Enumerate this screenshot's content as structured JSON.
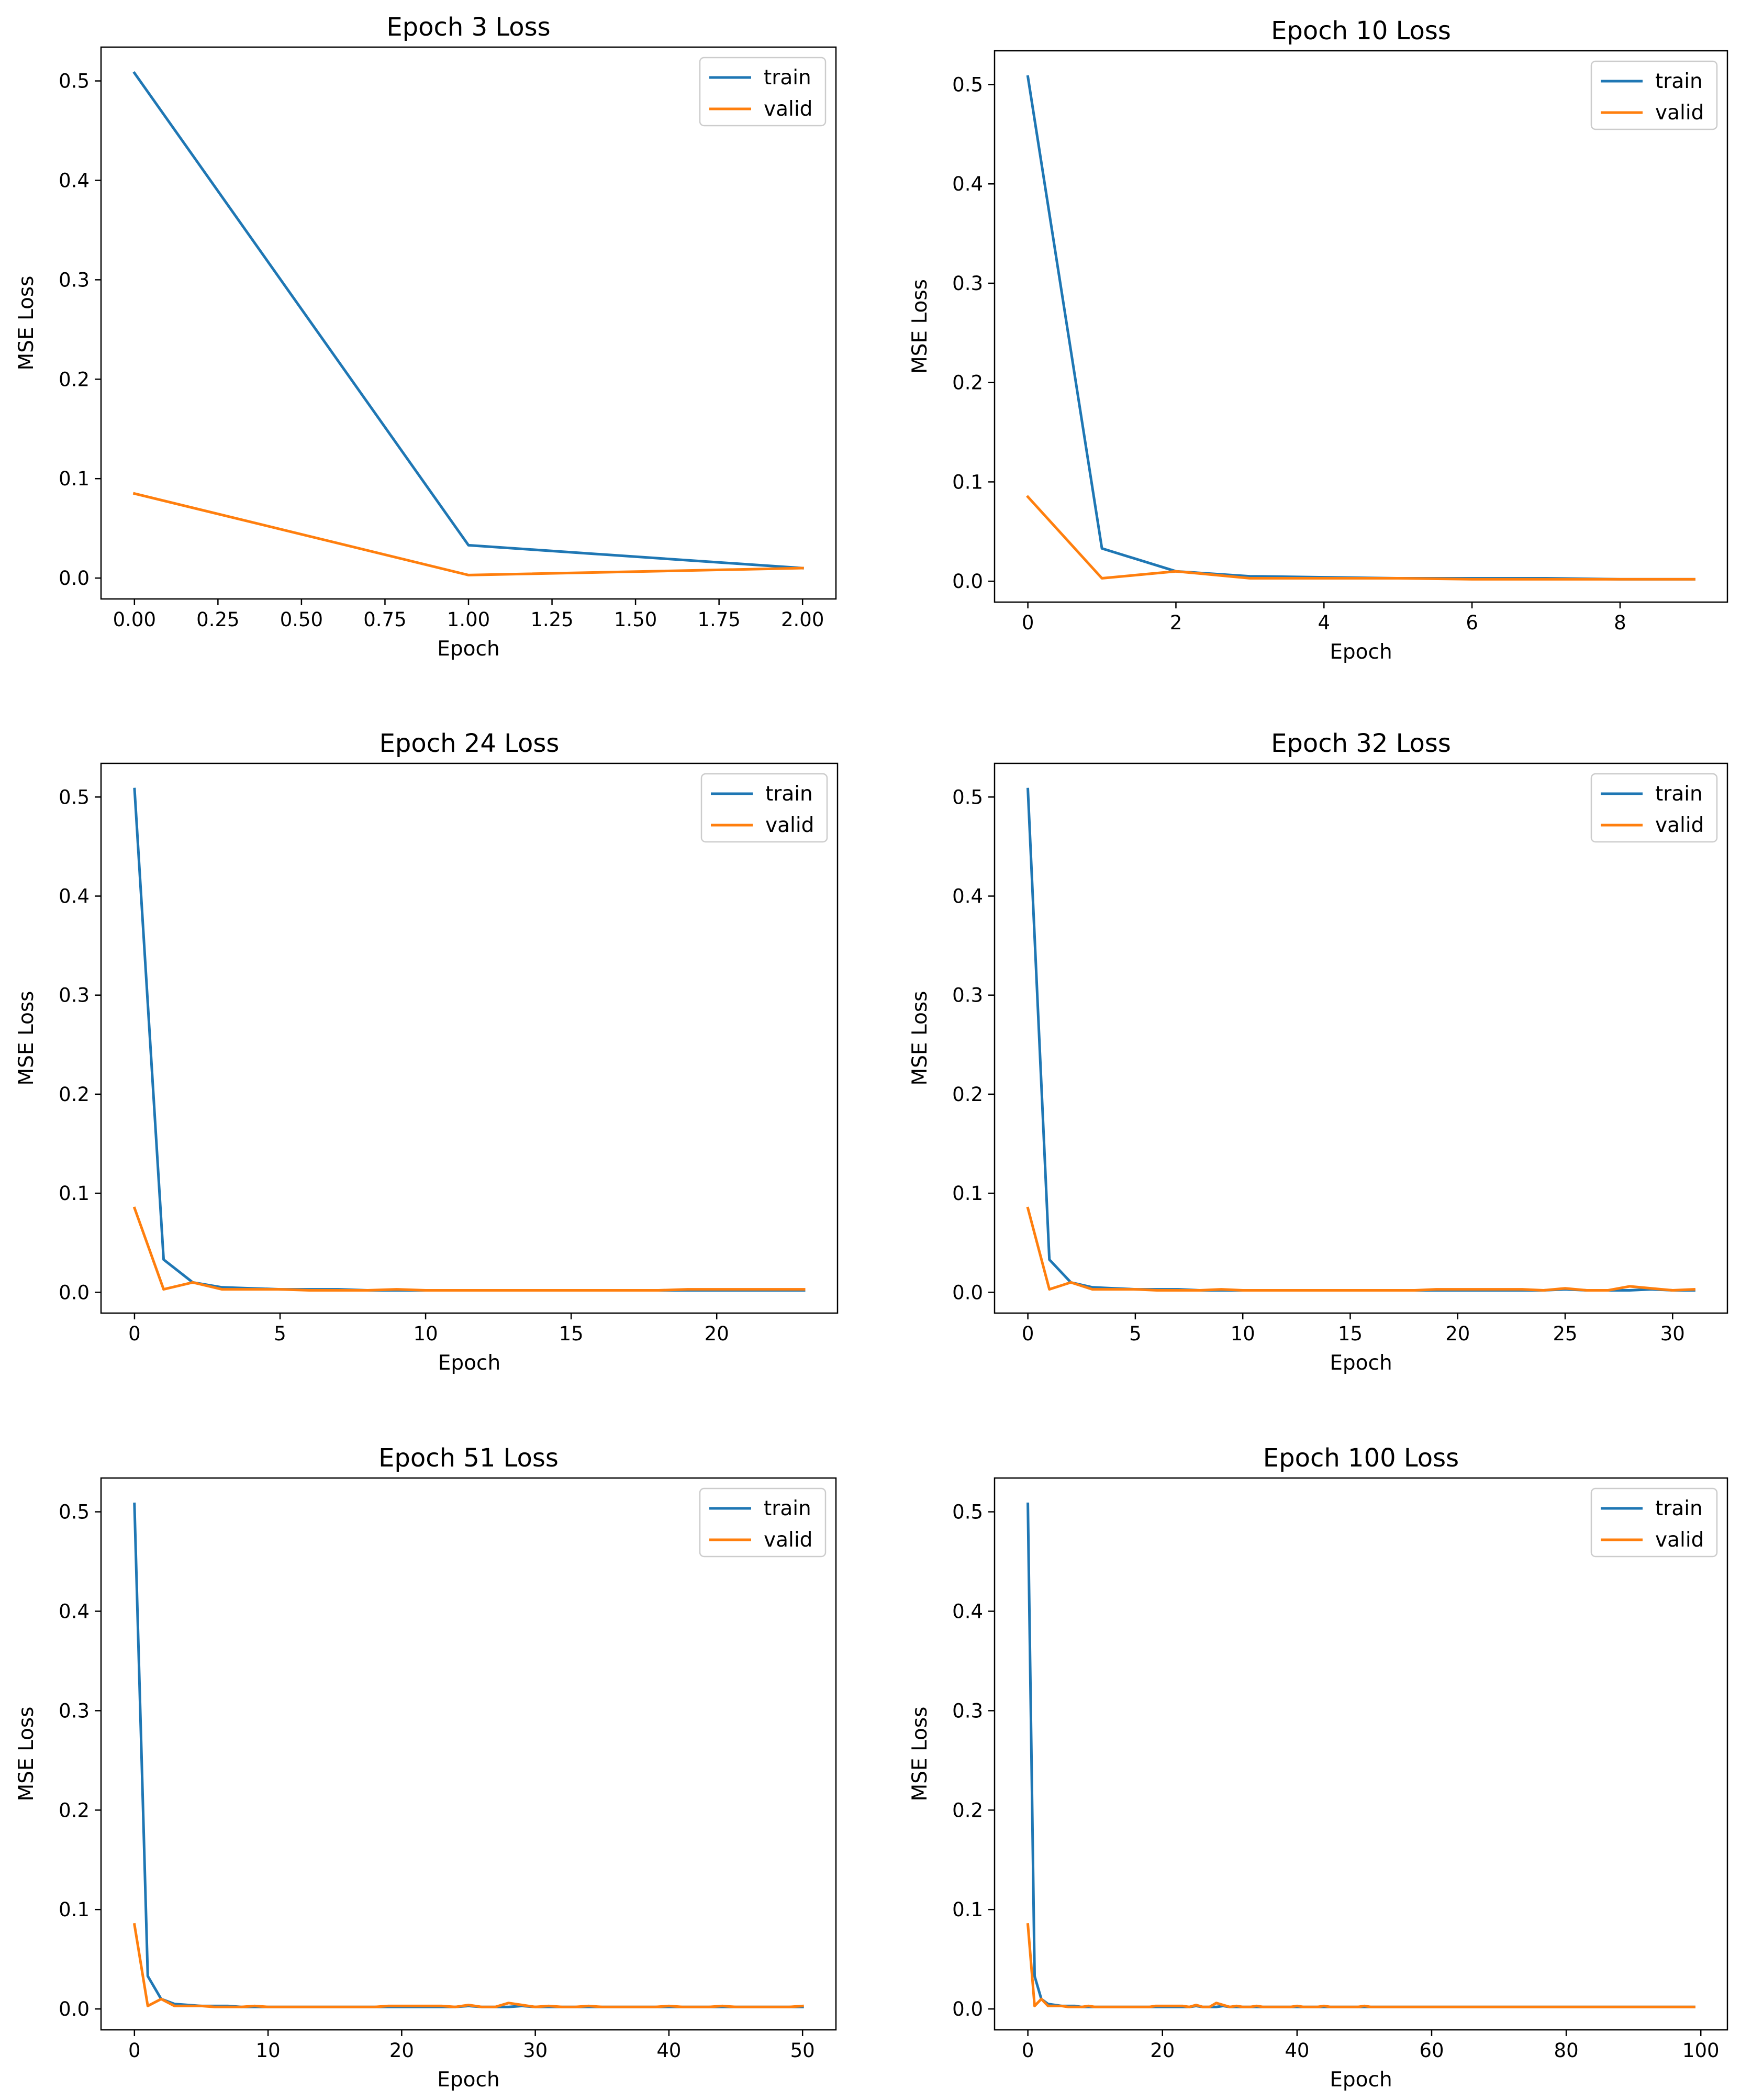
{
  "chart_data": [
    {
      "type": "line",
      "title": "Epoch 3 Loss",
      "xlabel": "Epoch",
      "ylabel": "MSE Loss",
      "xlim": [
        -0.1,
        2.1
      ],
      "ylim": [
        -0.021,
        0.534
      ],
      "xticks": [
        0,
        0.25,
        0.5,
        0.75,
        1,
        1.25,
        1.5,
        1.75,
        2
      ],
      "xtick_labels": [
        "0.00",
        "0.25",
        "0.50",
        "0.75",
        "1.00",
        "1.25",
        "1.50",
        "1.75",
        "2.00"
      ],
      "yticks": [
        0,
        0.1,
        0.2,
        0.3,
        0.4,
        0.5
      ],
      "ytick_labels": [
        "0.0",
        "0.1",
        "0.2",
        "0.3",
        "0.4",
        "0.5"
      ],
      "legend": "top-right",
      "grid": false,
      "x": [
        0,
        1,
        2
      ],
      "series": [
        {
          "name": "train",
          "color": "#1f77b4",
          "values": [
            0.508,
            0.033,
            0.01
          ]
        },
        {
          "name": "valid",
          "color": "#ff7f0e",
          "values": [
            0.085,
            0.003,
            0.01
          ]
        }
      ]
    },
    {
      "type": "line",
      "title": "Epoch 10 Loss",
      "xlabel": "Epoch",
      "ylabel": "MSE Loss",
      "xlim": [
        -0.45,
        9.45
      ],
      "ylim": [
        -0.021,
        0.534
      ],
      "xticks": [
        0,
        2,
        4,
        6,
        8
      ],
      "xtick_labels": [
        "0",
        "2",
        "4",
        "6",
        "8"
      ],
      "yticks": [
        0,
        0.1,
        0.2,
        0.3,
        0.4,
        0.5
      ],
      "ytick_labels": [
        "0.0",
        "0.1",
        "0.2",
        "0.3",
        "0.4",
        "0.5"
      ],
      "legend": "top-right",
      "grid": false,
      "x": [
        0,
        1,
        2,
        3,
        4,
        5,
        6,
        7,
        8,
        9
      ],
      "series": [
        {
          "name": "train",
          "color": "#1f77b4",
          "values": [
            0.508,
            0.033,
            0.01,
            0.005,
            0.004,
            0.003,
            0.003,
            0.003,
            0.002,
            0.002
          ]
        },
        {
          "name": "valid",
          "color": "#ff7f0e",
          "values": [
            0.085,
            0.003,
            0.01,
            0.003,
            0.003,
            0.003,
            0.002,
            0.002,
            0.002,
            0.002
          ]
        }
      ]
    },
    {
      "type": "line",
      "title": "Epoch 24 Loss",
      "xlabel": "Epoch",
      "ylabel": "MSE Loss",
      "xlim": [
        -1.15,
        24.15
      ],
      "ylim": [
        -0.021,
        0.534
      ],
      "xticks": [
        0,
        5,
        10,
        15,
        20
      ],
      "xtick_labels": [
        "0",
        "5",
        "10",
        "15",
        "20"
      ],
      "yticks": [
        0,
        0.1,
        0.2,
        0.3,
        0.4,
        0.5
      ],
      "ytick_labels": [
        "0.0",
        "0.1",
        "0.2",
        "0.3",
        "0.4",
        "0.5"
      ],
      "legend": "top-right",
      "grid": false,
      "x": [
        0,
        1,
        2,
        3,
        4,
        5,
        6,
        7,
        8,
        9,
        10,
        11,
        12,
        13,
        14,
        15,
        16,
        17,
        18,
        19,
        20,
        21,
        22,
        23
      ],
      "series": [
        {
          "name": "train",
          "color": "#1f77b4",
          "values": [
            0.508,
            0.033,
            0.01,
            0.005,
            0.004,
            0.003,
            0.003,
            0.003,
            0.002,
            0.002,
            0.002,
            0.002,
            0.002,
            0.002,
            0.002,
            0.002,
            0.002,
            0.002,
            0.002,
            0.002,
            0.002,
            0.002,
            0.002,
            0.002
          ]
        },
        {
          "name": "valid",
          "color": "#ff7f0e",
          "values": [
            0.085,
            0.003,
            0.01,
            0.003,
            0.003,
            0.003,
            0.002,
            0.002,
            0.002,
            0.003,
            0.002,
            0.002,
            0.002,
            0.002,
            0.002,
            0.002,
            0.002,
            0.002,
            0.002,
            0.003,
            0.003,
            0.003,
            0.003,
            0.003
          ]
        }
      ]
    },
    {
      "type": "line",
      "title": "Epoch 32 Loss",
      "xlabel": "Epoch",
      "ylabel": "MSE Loss",
      "xlim": [
        -1.55,
        32.55
      ],
      "ylim": [
        -0.021,
        0.534
      ],
      "xticks": [
        0,
        5,
        10,
        15,
        20,
        25,
        30
      ],
      "xtick_labels": [
        "0",
        "5",
        "10",
        "15",
        "20",
        "25",
        "30"
      ],
      "yticks": [
        0,
        0.1,
        0.2,
        0.3,
        0.4,
        0.5
      ],
      "ytick_labels": [
        "0.0",
        "0.1",
        "0.2",
        "0.3",
        "0.4",
        "0.5"
      ],
      "legend": "top-right",
      "grid": false,
      "x": [
        0,
        1,
        2,
        3,
        4,
        5,
        6,
        7,
        8,
        9,
        10,
        11,
        12,
        13,
        14,
        15,
        16,
        17,
        18,
        19,
        20,
        21,
        22,
        23,
        24,
        25,
        26,
        27,
        28,
        29,
        30,
        31
      ],
      "series": [
        {
          "name": "train",
          "color": "#1f77b4",
          "values": [
            0.508,
            0.033,
            0.01,
            0.005,
            0.004,
            0.003,
            0.003,
            0.003,
            0.002,
            0.002,
            0.002,
            0.002,
            0.002,
            0.002,
            0.002,
            0.002,
            0.002,
            0.002,
            0.002,
            0.002,
            0.002,
            0.002,
            0.002,
            0.002,
            0.002,
            0.003,
            0.002,
            0.002,
            0.002,
            0.003,
            0.002,
            0.002
          ]
        },
        {
          "name": "valid",
          "color": "#ff7f0e",
          "values": [
            0.085,
            0.003,
            0.01,
            0.003,
            0.003,
            0.003,
            0.002,
            0.002,
            0.002,
            0.003,
            0.002,
            0.002,
            0.002,
            0.002,
            0.002,
            0.002,
            0.002,
            0.002,
            0.002,
            0.003,
            0.003,
            0.003,
            0.003,
            0.003,
            0.002,
            0.004,
            0.002,
            0.002,
            0.006,
            0.004,
            0.002,
            0.003
          ]
        }
      ]
    },
    {
      "type": "line",
      "title": "Epoch 51 Loss",
      "xlabel": "Epoch",
      "ylabel": "MSE Loss",
      "xlim": [
        -2.5,
        52.5
      ],
      "ylim": [
        -0.021,
        0.534
      ],
      "xticks": [
        0,
        10,
        20,
        30,
        40,
        50
      ],
      "xtick_labels": [
        "0",
        "10",
        "20",
        "30",
        "40",
        "50"
      ],
      "yticks": [
        0,
        0.1,
        0.2,
        0.3,
        0.4,
        0.5
      ],
      "ytick_labels": [
        "0.0",
        "0.1",
        "0.2",
        "0.3",
        "0.4",
        "0.5"
      ],
      "legend": "top-right",
      "grid": false,
      "x": [
        0,
        1,
        2,
        3,
        4,
        5,
        6,
        7,
        8,
        9,
        10,
        11,
        12,
        13,
        14,
        15,
        16,
        17,
        18,
        19,
        20,
        21,
        22,
        23,
        24,
        25,
        26,
        27,
        28,
        29,
        30,
        31,
        32,
        33,
        34,
        35,
        36,
        37,
        38,
        39,
        40,
        41,
        42,
        43,
        44,
        45,
        46,
        47,
        48,
        49,
        50
      ],
      "series": [
        {
          "name": "train",
          "color": "#1f77b4",
          "values": [
            0.508,
            0.033,
            0.01,
            0.005,
            0.004,
            0.003,
            0.003,
            0.003,
            0.002,
            0.002,
            0.002,
            0.002,
            0.002,
            0.002,
            0.002,
            0.002,
            0.002,
            0.002,
            0.002,
            0.002,
            0.002,
            0.002,
            0.002,
            0.002,
            0.002,
            0.003,
            0.002,
            0.002,
            0.002,
            0.003,
            0.002,
            0.002,
            0.002,
            0.002,
            0.002,
            0.002,
            0.002,
            0.002,
            0.002,
            0.002,
            0.002,
            0.002,
            0.002,
            0.002,
            0.002,
            0.002,
            0.002,
            0.002,
            0.002,
            0.002,
            0.002
          ]
        },
        {
          "name": "valid",
          "color": "#ff7f0e",
          "values": [
            0.085,
            0.003,
            0.01,
            0.003,
            0.003,
            0.003,
            0.002,
            0.002,
            0.002,
            0.003,
            0.002,
            0.002,
            0.002,
            0.002,
            0.002,
            0.002,
            0.002,
            0.002,
            0.002,
            0.003,
            0.003,
            0.003,
            0.003,
            0.003,
            0.002,
            0.004,
            0.002,
            0.002,
            0.006,
            0.004,
            0.002,
            0.003,
            0.002,
            0.002,
            0.003,
            0.002,
            0.002,
            0.002,
            0.002,
            0.002,
            0.003,
            0.002,
            0.002,
            0.002,
            0.003,
            0.002,
            0.002,
            0.002,
            0.002,
            0.002,
            0.003
          ]
        }
      ]
    },
    {
      "type": "line",
      "title": "Epoch 100 Loss",
      "xlabel": "Epoch",
      "ylabel": "MSE Loss",
      "xlim": [
        -4.95,
        103.95
      ],
      "ylim": [
        -0.021,
        0.534
      ],
      "xticks": [
        0,
        20,
        40,
        60,
        80,
        100
      ],
      "xtick_labels": [
        "0",
        "20",
        "40",
        "60",
        "80",
        "100"
      ],
      "yticks": [
        0,
        0.1,
        0.2,
        0.3,
        0.4,
        0.5
      ],
      "ytick_labels": [
        "0.0",
        "0.1",
        "0.2",
        "0.3",
        "0.4",
        "0.5"
      ],
      "legend": "top-right",
      "grid": false,
      "x": [
        0,
        1,
        2,
        3,
        4,
        5,
        6,
        7,
        8,
        9,
        10,
        11,
        12,
        13,
        14,
        15,
        16,
        17,
        18,
        19,
        20,
        21,
        22,
        23,
        24,
        25,
        26,
        27,
        28,
        29,
        30,
        31,
        32,
        33,
        34,
        35,
        36,
        37,
        38,
        39,
        40,
        41,
        42,
        43,
        44,
        45,
        46,
        47,
        48,
        49,
        50,
        51,
        52,
        53,
        54,
        55,
        56,
        57,
        58,
        59,
        60,
        61,
        62,
        63,
        64,
        65,
        66,
        67,
        68,
        69,
        70,
        71,
        72,
        73,
        74,
        75,
        76,
        77,
        78,
        79,
        80,
        81,
        82,
        83,
        84,
        85,
        86,
        87,
        88,
        89,
        90,
        91,
        92,
        93,
        94,
        95,
        96,
        97,
        98,
        99
      ],
      "series": [
        {
          "name": "train",
          "color": "#1f77b4",
          "values": [
            0.508,
            0.033,
            0.01,
            0.005,
            0.004,
            0.003,
            0.003,
            0.003,
            0.002,
            0.002,
            0.002,
            0.002,
            0.002,
            0.002,
            0.002,
            0.002,
            0.002,
            0.002,
            0.002,
            0.002,
            0.002,
            0.002,
            0.002,
            0.002,
            0.002,
            0.003,
            0.002,
            0.002,
            0.002,
            0.003,
            0.002,
            0.002,
            0.002,
            0.002,
            0.002,
            0.002,
            0.002,
            0.002,
            0.002,
            0.002,
            0.002,
            0.002,
            0.002,
            0.002,
            0.002,
            0.002,
            0.002,
            0.002,
            0.002,
            0.002,
            0.002,
            0.002,
            0.002,
            0.002,
            0.002,
            0.002,
            0.002,
            0.002,
            0.002,
            0.002,
            0.002,
            0.002,
            0.002,
            0.002,
            0.002,
            0.002,
            0.002,
            0.002,
            0.002,
            0.002,
            0.002,
            0.002,
            0.002,
            0.002,
            0.002,
            0.002,
            0.002,
            0.002,
            0.002,
            0.002,
            0.002,
            0.002,
            0.002,
            0.002,
            0.002,
            0.002,
            0.002,
            0.002,
            0.002,
            0.002,
            0.002,
            0.002,
            0.002,
            0.002,
            0.002,
            0.002,
            0.002,
            0.002,
            0.002,
            0.002
          ]
        },
        {
          "name": "valid",
          "color": "#ff7f0e",
          "values": [
            0.085,
            0.003,
            0.01,
            0.003,
            0.003,
            0.003,
            0.002,
            0.002,
            0.002,
            0.003,
            0.002,
            0.002,
            0.002,
            0.002,
            0.002,
            0.002,
            0.002,
            0.002,
            0.002,
            0.003,
            0.003,
            0.003,
            0.003,
            0.003,
            0.002,
            0.004,
            0.002,
            0.002,
            0.006,
            0.004,
            0.002,
            0.003,
            0.002,
            0.002,
            0.003,
            0.002,
            0.002,
            0.002,
            0.002,
            0.002,
            0.003,
            0.002,
            0.002,
            0.002,
            0.003,
            0.002,
            0.002,
            0.002,
            0.002,
            0.002,
            0.003,
            0.002,
            0.002,
            0.002,
            0.002,
            0.002,
            0.002,
            0.002,
            0.002,
            0.002,
            0.002,
            0.002,
            0.002,
            0.002,
            0.002,
            0.002,
            0.002,
            0.002,
            0.002,
            0.002,
            0.002,
            0.002,
            0.002,
            0.002,
            0.002,
            0.002,
            0.002,
            0.002,
            0.002,
            0.002,
            0.002,
            0.002,
            0.002,
            0.002,
            0.002,
            0.002,
            0.002,
            0.002,
            0.002,
            0.002,
            0.002,
            0.002,
            0.002,
            0.002,
            0.002,
            0.002,
            0.002,
            0.002,
            0.002,
            0.002
          ]
        }
      ]
    }
  ]
}
